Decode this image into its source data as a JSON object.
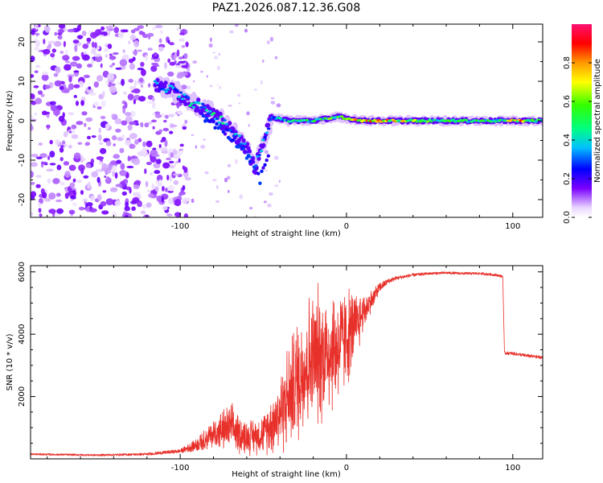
{
  "title": "PAZ1.2026.087.12.36.G08",
  "chart_data": [
    {
      "type": "heatmap",
      "name": "spectrogram",
      "xlabel": "Height of straight line (km)",
      "ylabel": "Frequency (Hz)",
      "xlim": [
        -190,
        118
      ],
      "ylim": [
        -24.5,
        24.5
      ],
      "xticks": [
        -100,
        0,
        100
      ],
      "yticks": [
        -20,
        -10,
        0,
        10,
        20
      ],
      "xtick_labels": [
        "-100",
        "0",
        "100"
      ],
      "ytick_labels": [
        "-20",
        "-10",
        "0",
        "10",
        "20"
      ],
      "colorbar": {
        "label": "Normalized spectral amplitude",
        "ticks": [
          "0.0",
          "0.2",
          "0.4",
          "0.6",
          "0.8"
        ],
        "tick_values": [
          0,
          0.2,
          0.4,
          0.6,
          0.8
        ],
        "range": [
          0,
          1
        ],
        "colormap": "rainbow"
      },
      "ridge": {
        "description": "dominant frequency vs height",
        "points": [
          {
            "x": -115,
            "y": 9,
            "amp": 0.3
          },
          {
            "x": -105,
            "y": 8,
            "amp": 0.35
          },
          {
            "x": -95,
            "y": 5,
            "amp": 0.45
          },
          {
            "x": -85,
            "y": 3,
            "amp": 0.45
          },
          {
            "x": -75,
            "y": 0,
            "amp": 0.4
          },
          {
            "x": -68,
            "y": -3,
            "amp": 0.35
          },
          {
            "x": -60,
            "y": -7,
            "amp": 0.35
          },
          {
            "x": -55,
            "y": -12,
            "amp": 0.35
          },
          {
            "x": -45,
            "y": 1,
            "amp": 0.4
          },
          {
            "x": -35,
            "y": 0,
            "amp": 0.45
          },
          {
            "x": -20,
            "y": 0,
            "amp": 0.5
          },
          {
            "x": -5,
            "y": 1,
            "amp": 0.6
          },
          {
            "x": 10,
            "y": 0,
            "amp": 0.8
          },
          {
            "x": 30,
            "y": 0,
            "amp": 0.7
          },
          {
            "x": 60,
            "y": 0,
            "amp": 0.5
          },
          {
            "x": 90,
            "y": 0,
            "amp": 0.5
          },
          {
            "x": 105,
            "y": 0,
            "amp": 0.75
          },
          {
            "x": 118,
            "y": 0,
            "amp": 0.5
          }
        ]
      }
    },
    {
      "type": "line",
      "name": "snr",
      "xlabel": "Height of straight line (km)",
      "ylabel": "SNR (10 * v/v)",
      "xlim": [
        -190,
        118
      ],
      "ylim": [
        0,
        6200
      ],
      "xticks": [
        -100,
        0,
        100
      ],
      "yticks": [
        2000,
        4000,
        6000
      ],
      "xtick_labels": [
        "-100",
        "0",
        "100"
      ],
      "ytick_labels": [
        "2000",
        "4000",
        "6000"
      ],
      "color": "#e8302a",
      "series": [
        {
          "name": "SNR",
          "x": [
            -190,
            -150,
            -120,
            -100,
            -90,
            -80,
            -70,
            -60,
            -50,
            -40,
            -30,
            -25,
            -20,
            -15,
            -10,
            -5,
            0,
            5,
            10,
            15,
            20,
            25,
            30,
            40,
            50,
            60,
            70,
            80,
            90,
            94,
            95,
            100,
            110,
            118
          ],
          "y": [
            150,
            120,
            150,
            250,
            450,
            800,
            1000,
            700,
            800,
            1500,
            2500,
            3000,
            3200,
            3400,
            3500,
            3600,
            3900,
            4200,
            4700,
            5100,
            5500,
            5700,
            5800,
            5900,
            5950,
            5970,
            5950,
            5950,
            5900,
            5850,
            3400,
            3380,
            3300,
            3250
          ],
          "noise": [
            30,
            30,
            40,
            60,
            200,
            450,
            700,
            500,
            550,
            1200,
            1800,
            2000,
            2000,
            2000,
            1900,
            1700,
            1500,
            1100,
            600,
            300,
            150,
            80,
            60,
            50,
            40,
            40,
            40,
            40,
            40,
            40,
            50,
            50,
            50,
            50
          ]
        }
      ]
    }
  ]
}
